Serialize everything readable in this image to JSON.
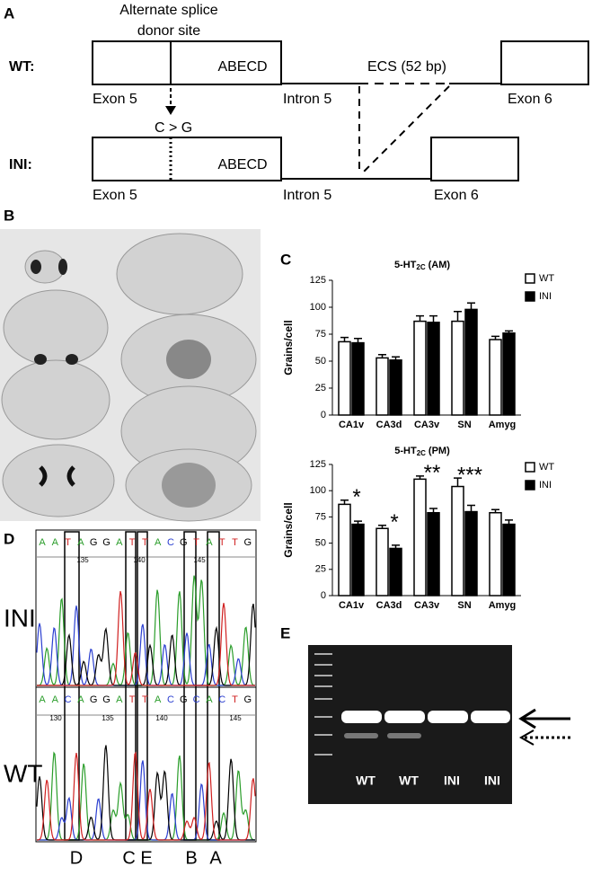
{
  "panel_labels": [
    "A",
    "B",
    "C",
    "D",
    "E"
  ],
  "splice_diagram": {
    "site_label": [
      "Alternate splice",
      "donor site"
    ],
    "wt": {
      "row_label": "WT:",
      "box_text": "ABECD",
      "ecs_label": "ECS (52 bp)",
      "exon5": "Exon 5",
      "intron5": "Intron 5",
      "exon6": "Exon 6"
    },
    "mutation": "C > G",
    "ini": {
      "row_label": "INI:",
      "box_text": "ABECD",
      "exon5": "Exon 5",
      "intron5": "Intron 5",
      "exon6": "Exon 6"
    }
  },
  "chart_data": [
    {
      "type": "bar",
      "title": "5-HT",
      "title_sub": "2C",
      "title_suffix": "(AM)",
      "y_label": "Grains/cell",
      "categories": [
        "CA1v",
        "CA3d",
        "CA3v",
        "SN",
        "Amyg"
      ],
      "series": [
        {
          "name": "WT",
          "color": "#ffffff",
          "values": [
            68,
            53,
            87,
            87,
            70
          ],
          "errors": [
            4,
            3,
            5,
            9,
            3
          ]
        },
        {
          "name": "INI",
          "color": "#000000",
          "values": [
            67,
            51,
            86,
            98,
            76
          ],
          "errors": [
            4,
            3,
            6,
            6,
            2
          ]
        }
      ],
      "ylim": [
        0,
        125
      ],
      "yticks": [
        0,
        25,
        50,
        75,
        100,
        125
      ],
      "legend": "upper right",
      "annotations": []
    },
    {
      "type": "bar",
      "title": "5-HT",
      "title_sub": "2C",
      "title_suffix": "(PM)",
      "y_label": "Grains/cell",
      "categories": [
        "CA1v",
        "CA3d",
        "CA3v",
        "SN",
        "Amyg"
      ],
      "series": [
        {
          "name": "WT",
          "color": "#ffffff",
          "values": [
            87,
            64,
            111,
            104,
            79
          ],
          "errors": [
            4,
            3,
            3,
            8,
            3
          ]
        },
        {
          "name": "INI",
          "color": "#000000",
          "values": [
            68,
            45,
            79,
            80,
            68
          ],
          "errors": [
            3,
            3,
            4,
            6,
            4
          ]
        }
      ],
      "ylim": [
        0,
        125
      ],
      "yticks": [
        0,
        25,
        50,
        75,
        100,
        125
      ],
      "legend": "upper right",
      "annotations": [
        {
          "text": "*",
          "category": "CA1v"
        },
        {
          "text": "*",
          "category": "CA3d"
        },
        {
          "text": "**",
          "category": "CA3v"
        },
        {
          "text": "***",
          "category": "SN"
        }
      ]
    }
  ],
  "chromatogram": {
    "ini": {
      "label": "INI",
      "sequence": [
        "A",
        "A",
        "T",
        "A",
        "G",
        "G",
        "A",
        "T",
        "T",
        "A",
        "C",
        "G",
        "T",
        "A",
        "T",
        "T",
        "G"
      ],
      "positions": [
        135,
        140,
        145
      ]
    },
    "wt": {
      "label": "WT",
      "sequence": [
        "A",
        "A",
        "C",
        "A",
        "G",
        "G",
        "A",
        "T",
        "T",
        "A",
        "C",
        "G",
        "C",
        "A",
        "C",
        "T",
        "G"
      ],
      "positions": [
        130,
        135,
        140,
        145
      ]
    },
    "sites": [
      "D",
      "C E",
      "B",
      "A"
    ]
  },
  "gel": {
    "lane_labels": [
      "WT",
      "WT",
      "INI",
      "INI"
    ]
  }
}
